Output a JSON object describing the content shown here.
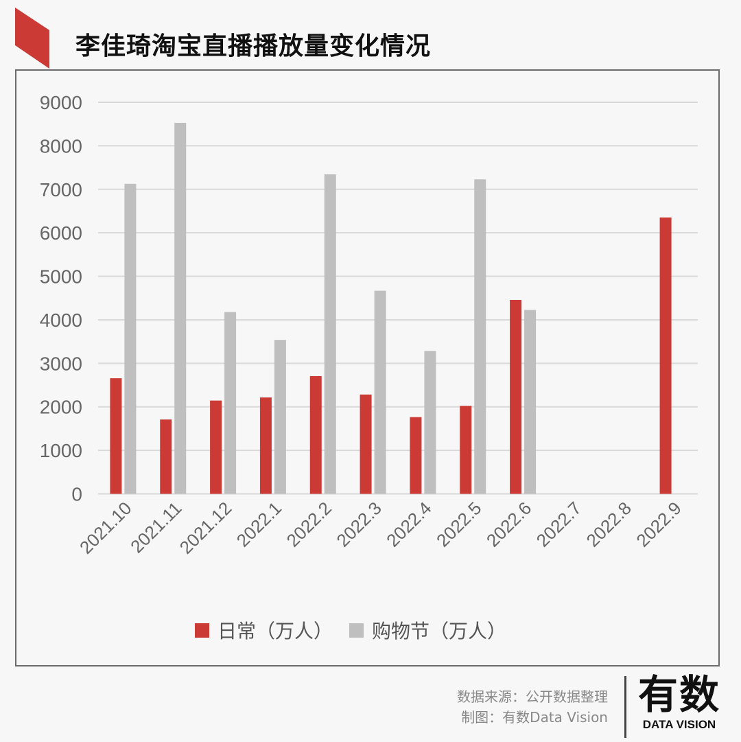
{
  "header": {
    "title": "李佳琦淘宝直播播放量变化情况",
    "accent_color": "#cc3a35"
  },
  "legend": [
    {
      "label": "日常（万人）",
      "color": "#cc3a35"
    },
    {
      "label": "购物节（万人）",
      "color": "#bfbfbf"
    }
  ],
  "footer": {
    "source": "数据来源：公开数据整理",
    "credit": "制图：有数Data Vision",
    "logo_cn": "有数",
    "logo_en": "DATA VISION"
  },
  "chart_data": {
    "type": "bar",
    "title": "李佳琦淘宝直播播放量变化情况",
    "xlabel": "",
    "ylabel": "",
    "ylim": [
      0,
      9000
    ],
    "yticks": [
      0,
      1000,
      2000,
      3000,
      4000,
      5000,
      6000,
      7000,
      8000,
      9000
    ],
    "grid": true,
    "legend_position": "bottom",
    "categories": [
      "2021.10",
      "2021.11",
      "2021.12",
      "2022.1",
      "2022.2",
      "2022.3",
      "2022.4",
      "2022.5",
      "2022.6",
      "2022.7",
      "2022.8",
      "2022.9"
    ],
    "series": [
      {
        "name": "日常（万人）",
        "color": "#cc3a35",
        "values": [
          2657,
          1709,
          2144,
          2216,
          2706,
          2283,
          1763,
          2023,
          4457,
          null,
          null,
          6353
        ]
      },
      {
        "name": "购物节（万人）",
        "color": "#bfbfbf",
        "values": [
          7126,
          8527,
          4179,
          3539,
          7344,
          4668,
          3285,
          7229,
          4227,
          null,
          null,
          null
        ]
      }
    ]
  }
}
